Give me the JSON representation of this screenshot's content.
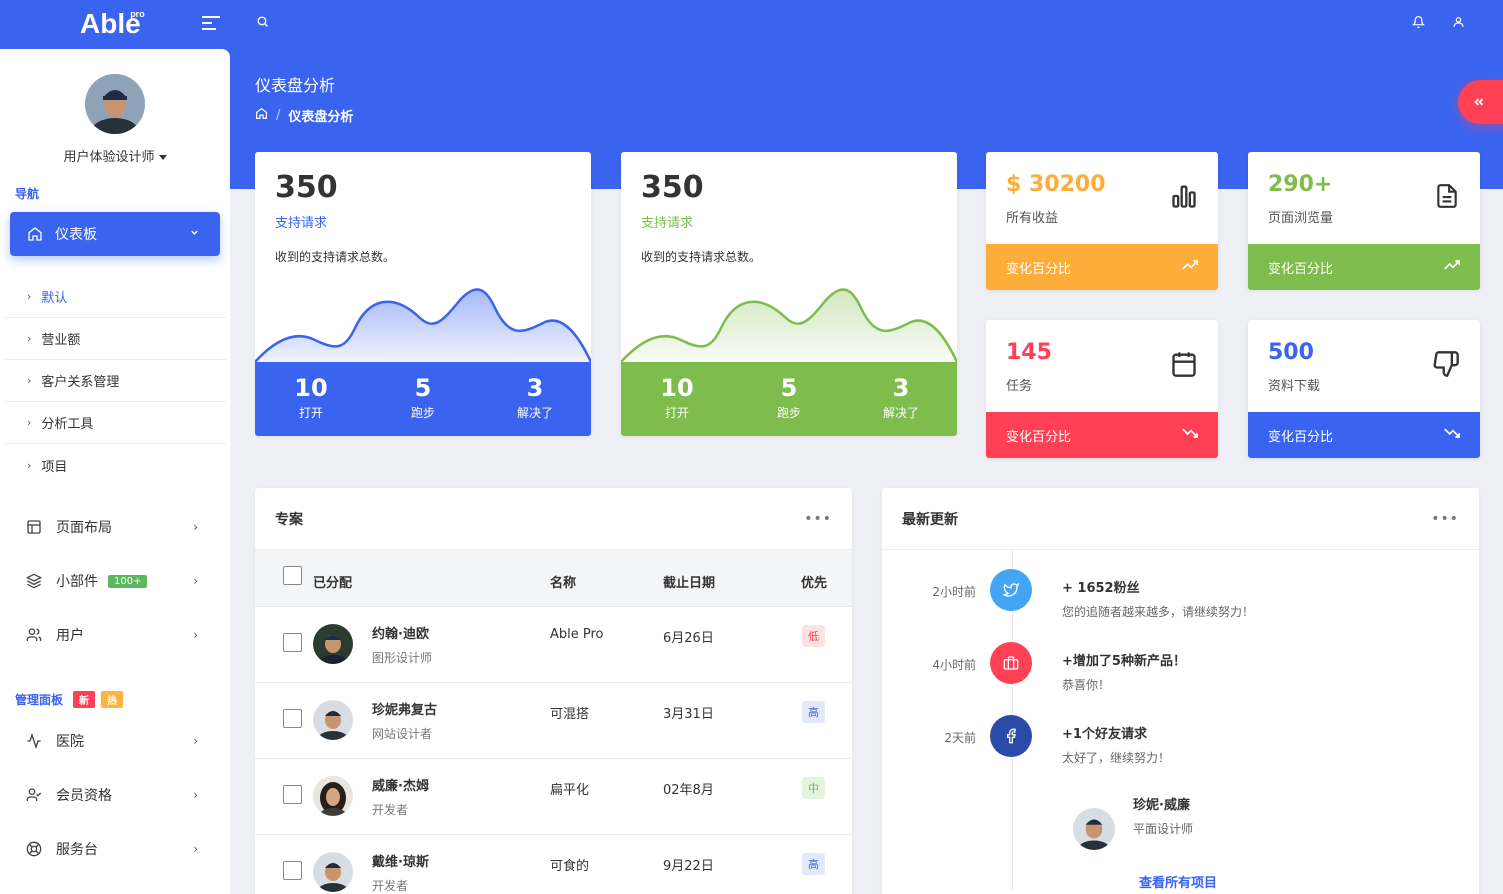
{
  "brand": {
    "name": "Able",
    "sup": "pro"
  },
  "header": {
    "page_title": "仪表盘分析",
    "breadcrumb_current": "仪表盘分析",
    "breadcrumb_sep": "/"
  },
  "sidebar": {
    "user_role": "用户体验设计师",
    "nav_heading": "导航",
    "active_item": "仪表板",
    "sub_items": [
      "默认",
      "营业额",
      "客户关系管理",
      "分析工具",
      "项目"
    ],
    "items": [
      {
        "label": "页面布局",
        "icon": "layout-icon"
      },
      {
        "label": "小部件",
        "icon": "layers-icon",
        "badge": "100+"
      },
      {
        "label": "用户",
        "icon": "users-icon"
      }
    ],
    "admin_heading": "管理面板",
    "admin_badge_new": "新",
    "admin_badge_hot": "热",
    "admin_items": [
      {
        "label": "医院",
        "icon": "activity-icon"
      },
      {
        "label": "会员资格",
        "icon": "user-check-icon"
      },
      {
        "label": "服务台",
        "icon": "lifebuoy-icon"
      }
    ]
  },
  "stat_cards": [
    {
      "value": "350",
      "label": "支持请求",
      "desc": "收到的支持请求总数。",
      "color": "#3a64f0",
      "stats": [
        {
          "n": "10",
          "t": "打开"
        },
        {
          "n": "5",
          "t": "跑步"
        },
        {
          "n": "3",
          "t": "解决了"
        }
      ]
    },
    {
      "value": "350",
      "label": "支持请求",
      "desc": "收到的支持请求总数。",
      "color": "#7ebc4d",
      "stats": [
        {
          "n": "10",
          "t": "打开"
        },
        {
          "n": "5",
          "t": "跑步"
        },
        {
          "n": "3",
          "t": "解决了"
        }
      ]
    }
  ],
  "mini_cards": [
    {
      "value": "$ 30200",
      "label": "所有收益",
      "footer": "变化百分比",
      "icon": "bar-chart-icon",
      "color": "#ffad3a",
      "trend": "trending-up-icon"
    },
    {
      "value": "290+",
      "label": "页面浏览量",
      "footer": "变化百分比",
      "icon": "file-text-icon",
      "color": "#7ebc4d",
      "trend": "trending-up-icon"
    },
    {
      "value": "145",
      "label": "任务",
      "footer": "变化百分比",
      "icon": "calendar-icon",
      "color": "#ff4055",
      "trend": "trending-down-icon"
    },
    {
      "value": "500",
      "label": "资料下载",
      "footer": "变化百分比",
      "icon": "thumbs-down-icon",
      "color": "#3a64f0",
      "trend": "trending-down-icon"
    }
  ],
  "projects": {
    "title": "专案",
    "menu": "•••",
    "columns": [
      "已分配",
      "名称",
      "截止日期",
      "优先"
    ],
    "rows": [
      {
        "name": "约翰·迪欧",
        "role": "图形设计师",
        "project": "Able Pro",
        "date": "6月26日",
        "priority": "低"
      },
      {
        "name": "珍妮弗复古",
        "role": "网站设计者",
        "project": "可混搭",
        "date": "3月31日",
        "priority": "高"
      },
      {
        "name": "威廉·杰姆",
        "role": "开发者",
        "project": "扁平化",
        "date": "02年8月",
        "priority": "中"
      },
      {
        "name": "戴维·琼斯",
        "role": "开发者",
        "project": "可食的",
        "date": "9月22日",
        "priority": "高"
      }
    ]
  },
  "updates": {
    "title": "最新更新",
    "menu": "•••",
    "items": [
      {
        "time": "2小时前",
        "title": "+ 1652粉丝",
        "text": "您的追随者越来越多，请继续努力！",
        "icon": "twitter-icon",
        "color": "#42a5f5"
      },
      {
        "time": "4小时前",
        "title": "+增加了5种新产品！",
        "text": "恭喜你！",
        "icon": "briefcase-icon",
        "color": "#ff4055"
      },
      {
        "time": "2天前",
        "title": "+1个好友请求",
        "text": "太好了，继续努力！",
        "icon": "facebook-icon",
        "color": "#2b4ba8"
      }
    ],
    "person": {
      "name": "珍妮·威廉",
      "role": "平面设计师"
    },
    "view_all": "查看所有项目"
  }
}
